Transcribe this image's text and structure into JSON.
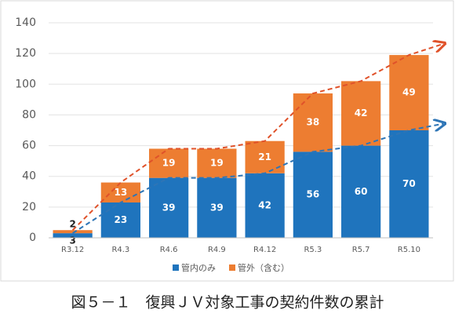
{
  "chart_data": {
    "type": "stacked-bar",
    "title": "図５－１　復興ＪＶ対象工事の契約件数の累計",
    "categories": [
      "R3.12",
      "R4.3",
      "R4.6",
      "R4.9",
      "R4.12",
      "R5.3",
      "R5.7",
      "R5.10"
    ],
    "series": [
      {
        "name": "管内のみ",
        "color": "#1f74bd",
        "values": [
          3,
          23,
          39,
          39,
          42,
          56,
          60,
          70
        ]
      },
      {
        "name": "管外（含む）",
        "color": "#ed7d31",
        "values": [
          2,
          13,
          19,
          19,
          21,
          38,
          42,
          49
        ]
      }
    ],
    "ylim": [
      0,
      140
    ],
    "yticks": [
      0,
      20,
      40,
      60,
      80,
      100,
      120,
      140
    ],
    "grid": true,
    "trend_lines": true
  }
}
